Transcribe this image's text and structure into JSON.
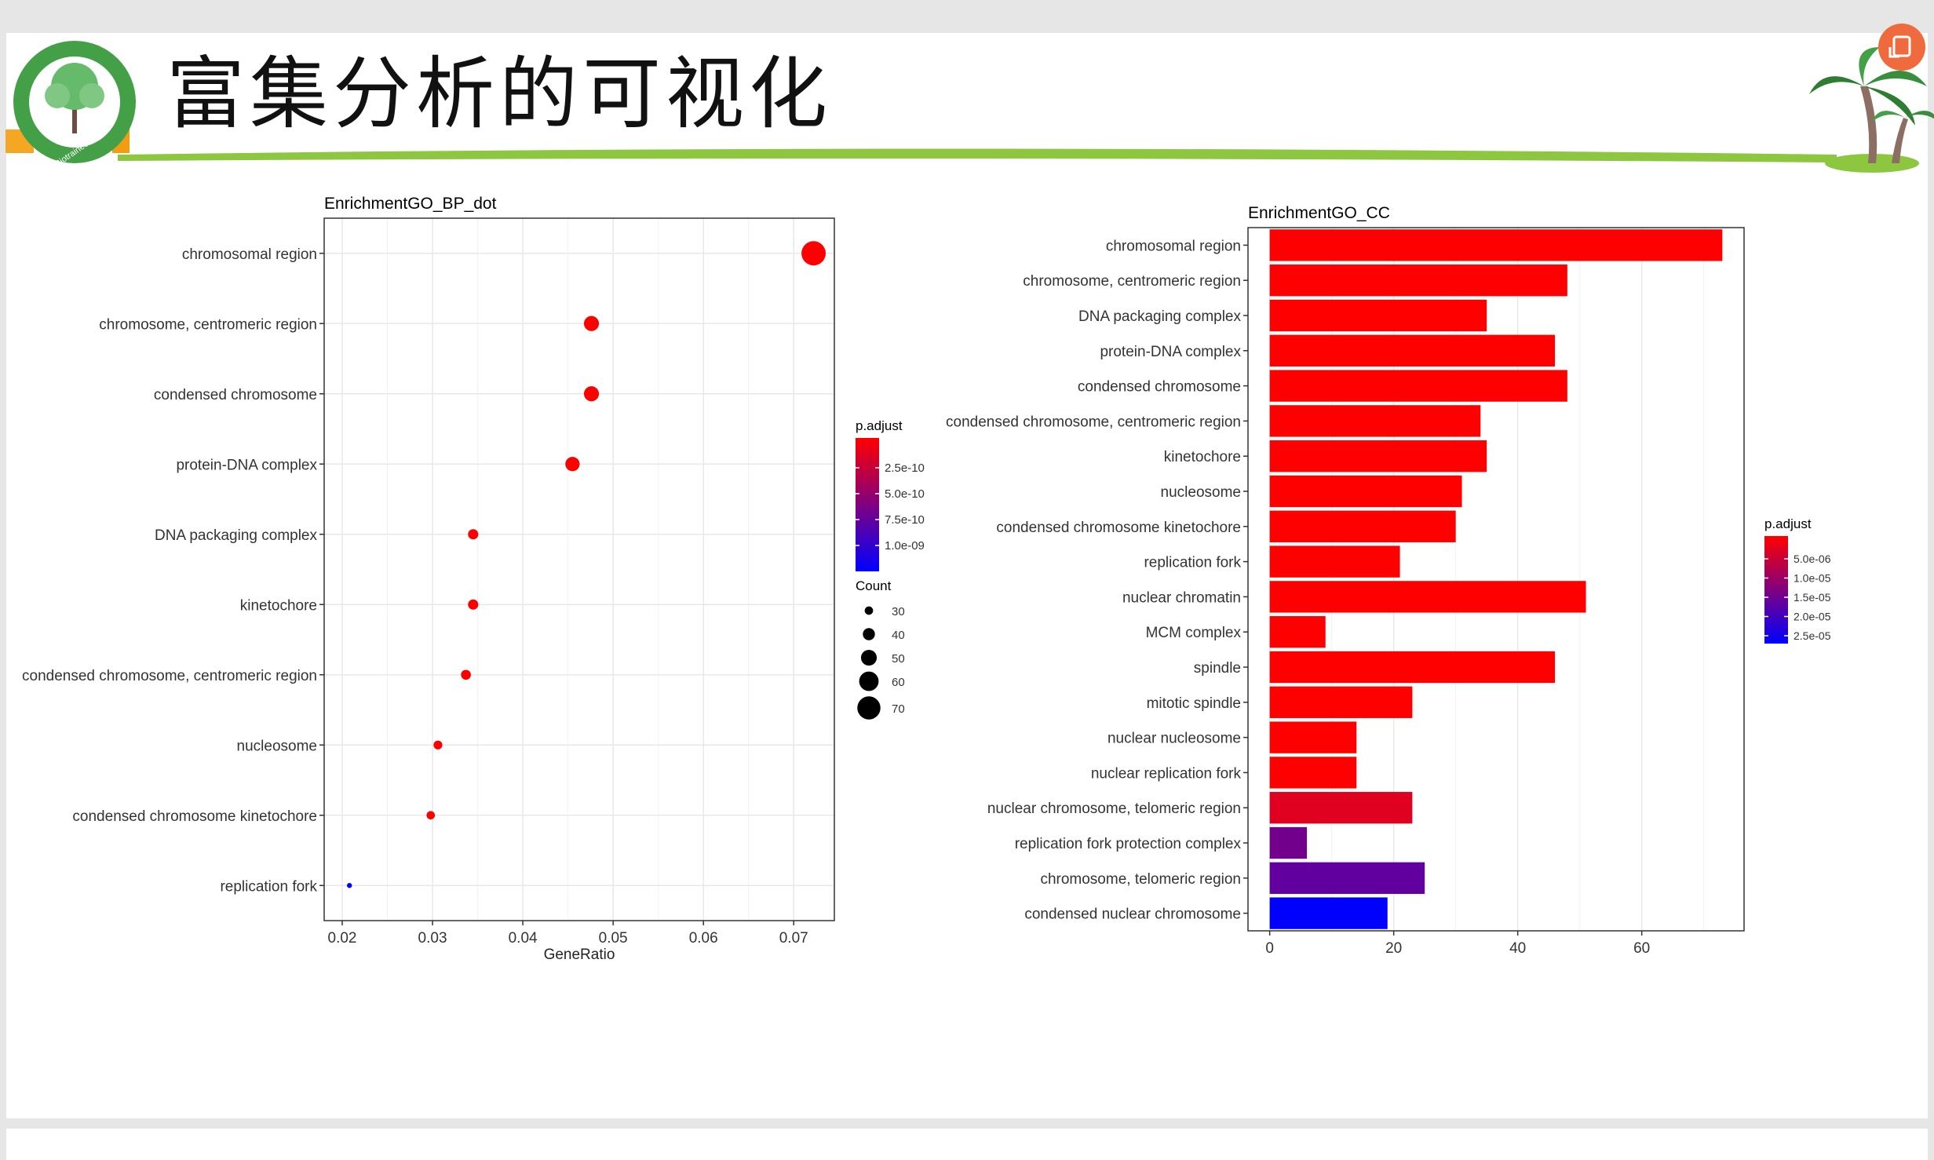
{
  "slide": {
    "title": "富集分析的可视化"
  },
  "logo": {
    "text": "Biotrainee.com"
  },
  "colors": {
    "high": "#FF0000",
    "low": "#0000FF",
    "header_line": "#8dc63f",
    "fab": "#ef6a3c"
  },
  "chart_data": [
    {
      "type": "scatter",
      "title": "EnrichmentGO_BP_dot",
      "xlabel": "GeneRatio",
      "ylabel": "",
      "xlim": [
        0.018,
        0.0745
      ],
      "xticks": [
        "0.02",
        "0.03",
        "0.04",
        "0.05",
        "0.06",
        "0.07"
      ],
      "grid": true,
      "categories": [
        "chromosomal region",
        "chromosome, centromeric region",
        "condensed chromosome",
        "protein-DNA complex",
        "DNA packaging complex",
        "kinetochore",
        "condensed chromosome, centromeric region",
        "nucleosome",
        "condensed chromosome kinetochore",
        "replication fork"
      ],
      "gene_ratio": [
        0.0722,
        0.0476,
        0.0476,
        0.0455,
        0.0345,
        0.0345,
        0.0337,
        0.0306,
        0.0298,
        0.0208
      ],
      "count": [
        73,
        48,
        48,
        46,
        35,
        35,
        34,
        31,
        30,
        21
      ],
      "p_adjust_frac": [
        0,
        0,
        0,
        0,
        0,
        0,
        0,
        0,
        0,
        1
      ],
      "color_legend": {
        "title": "p.adjust",
        "labels": [
          "2.5e-10",
          "5.0e-10",
          "7.5e-10",
          "1.0e-09"
        ]
      },
      "size_legend": {
        "title": "Count",
        "values": [
          30,
          40,
          50,
          60,
          70
        ],
        "labels": [
          "30",
          "40",
          "50",
          "60",
          "70"
        ]
      }
    },
    {
      "type": "bar",
      "orientation": "horizontal",
      "title": "EnrichmentGO_CC",
      "xlabel": "",
      "ylabel": "",
      "xlim": [
        -3.5,
        76.5
      ],
      "xticks": [
        "0",
        "20",
        "40",
        "60"
      ],
      "grid": true,
      "categories": [
        "chromosomal region",
        "chromosome, centromeric region",
        "DNA packaging complex",
        "protein-DNA complex",
        "condensed chromosome",
        "condensed chromosome, centromeric region",
        "kinetochore",
        "nucleosome",
        "condensed chromosome kinetochore",
        "replication fork",
        "nuclear chromatin",
        "MCM complex",
        "spindle",
        "mitotic spindle",
        "nuclear nucleosome",
        "nuclear replication fork",
        "nuclear chromosome, telomeric region",
        "replication fork protection complex",
        "chromosome, telomeric region",
        "condensed nuclear chromosome"
      ],
      "values": [
        73,
        48,
        35,
        46,
        48,
        34,
        35,
        31,
        30,
        21,
        51,
        9,
        46,
        23,
        14,
        14,
        23,
        6,
        25,
        19
      ],
      "p_adjust_frac": [
        0,
        0,
        0,
        0,
        0,
        0,
        0,
        0,
        0,
        0,
        0,
        0,
        0,
        0,
        0,
        0,
        0.12,
        0.55,
        0.62,
        1
      ],
      "color_legend": {
        "title": "p.adjust",
        "labels": [
          "5.0e-06",
          "1.0e-05",
          "1.5e-05",
          "2.0e-05",
          "2.5e-05"
        ]
      }
    }
  ]
}
